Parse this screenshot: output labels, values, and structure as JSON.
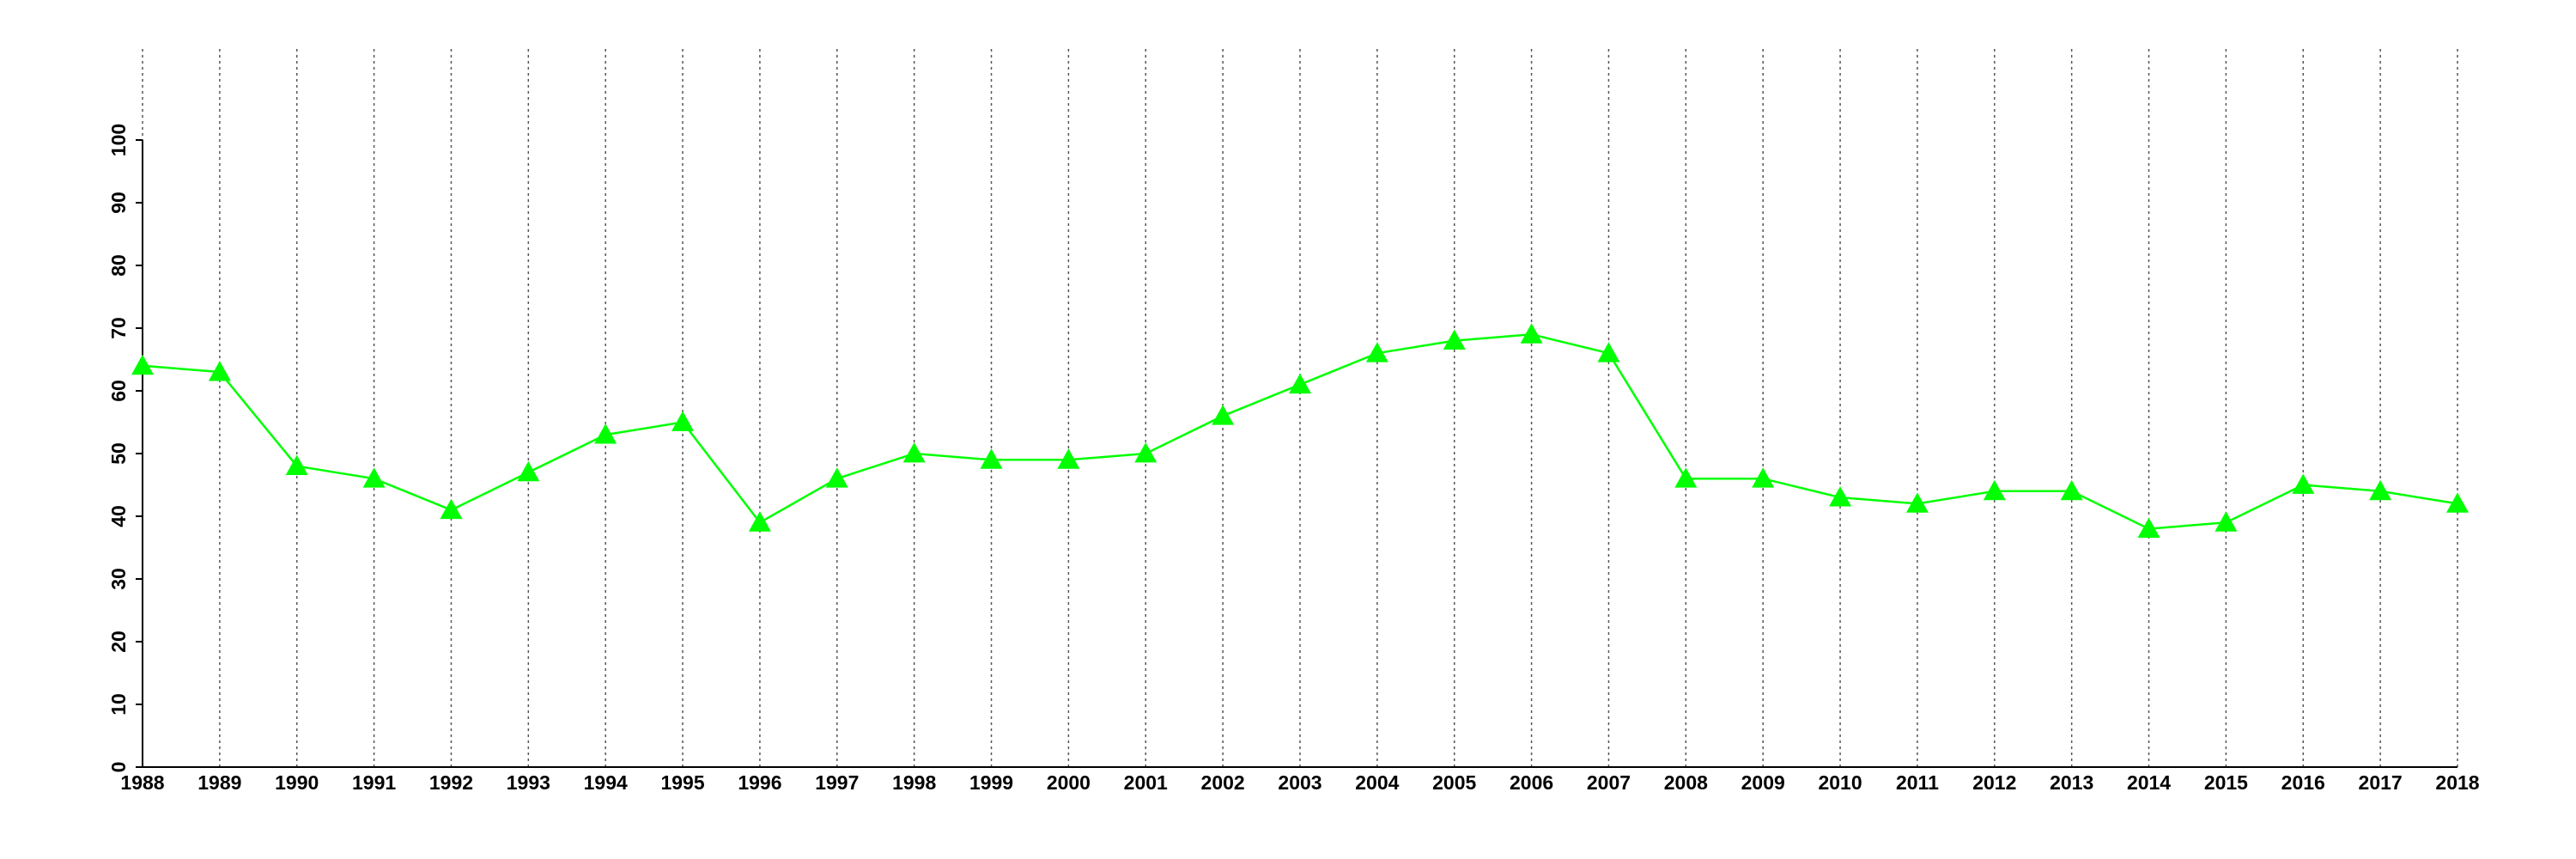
{
  "chart_data": {
    "type": "line",
    "categories": [
      "1988",
      "1989",
      "1990",
      "1991",
      "1992",
      "1993",
      "1994",
      "1995",
      "1996",
      "1997",
      "1998",
      "1999",
      "2000",
      "2001",
      "2002",
      "2003",
      "2004",
      "2005",
      "2006",
      "2007",
      "2008",
      "2009",
      "2010",
      "2011",
      "2012",
      "2013",
      "2014",
      "2015",
      "2016",
      "2017",
      "2018"
    ],
    "values": [
      64,
      63,
      48,
      46,
      41,
      47,
      53,
      55,
      39,
      46,
      50,
      49,
      49,
      50,
      56,
      61,
      66,
      68,
      69,
      66,
      46,
      46,
      43,
      42,
      44,
      44,
      38,
      39,
      45,
      44,
      42
    ],
    "color": "#00ff00",
    "marker": "triangle",
    "ylim": [
      0,
      100
    ],
    "yticks": [
      0,
      10,
      20,
      30,
      40,
      50,
      60,
      70,
      80,
      90,
      100
    ],
    "grid": true
  }
}
